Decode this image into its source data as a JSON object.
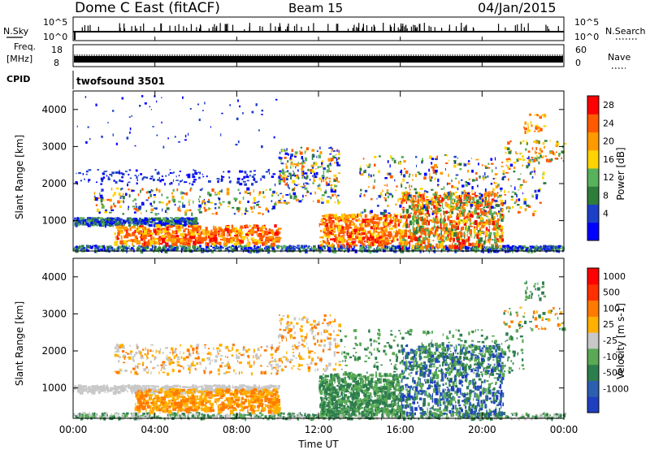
{
  "header": {
    "station": "Dome C East (fitACF)",
    "beam": "Beam 15",
    "date": "04/Jan/2015"
  },
  "noise_panel": {
    "left_label": "N.Sky",
    "right_label": "N.Search",
    "left_ticks": [
      "10^5",
      "10^0"
    ],
    "right_ticks": [
      "10^5",
      "10^0"
    ]
  },
  "freq_panel": {
    "left_label_1": "Freq.",
    "left_label_2": "[MHz]",
    "right_label": "Nave",
    "left_ticks": [
      "18",
      "8"
    ],
    "right_ticks": [
      "60",
      "0"
    ]
  },
  "cpid_panel": {
    "label": "CPID",
    "mode": "twofsound 3501"
  },
  "chart_data": [
    {
      "type": "heatmap",
      "title": "Power",
      "ylabel": "Slant Range [km]",
      "xlabel": "",
      "ylim": [
        180,
        4500
      ],
      "xlim": [
        "00:00",
        "24:00"
      ],
      "colorbar_label": "Power [dB]",
      "colorbar_ticks": [
        "28",
        "24",
        "20",
        "16",
        "12",
        "8",
        "4"
      ],
      "colors": [
        "#0000ff",
        "#1c3fc8",
        "#2f7d3a",
        "#58b25c",
        "#ffd400",
        "#ff9a00",
        "#ff5a00",
        "#ff0000"
      ]
    },
    {
      "type": "heatmap",
      "title": "Velocity",
      "ylabel": "Slant Range [km]",
      "xlabel": "Time UT",
      "ylim": [
        180,
        4500
      ],
      "xlim": [
        "00:00",
        "24:00"
      ],
      "colorbar_label": "Velocity [m s-1]",
      "colorbar_ticks": [
        "1000",
        "500",
        "100",
        "25",
        "-25",
        "-100",
        "-500",
        "-1000"
      ],
      "colors": [
        "#1f3fbf",
        "#2c5fb0",
        "#2e7d4f",
        "#5aaa55",
        "#c8c8c8",
        "#ffb000",
        "#ff7a00",
        "#ff3000",
        "#ff0000"
      ]
    }
  ],
  "y_ticks": [
    "4000",
    "3000",
    "2000",
    "1000"
  ],
  "x_ticks": [
    "00:00",
    "04:00",
    "08:00",
    "12:00",
    "16:00",
    "20:00",
    "00:00"
  ]
}
